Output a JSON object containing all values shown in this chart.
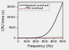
{
  "title": "",
  "xlabel": "Frequency (Hz)",
  "ylabel": "CPU time (s)",
  "xlim": [
    0,
    5000
  ],
  "ylim": [
    0,
    17000
  ],
  "spatial_label": "Spatial method",
  "pw_label": "PW method",
  "spatial_color": "#222222",
  "pw_color": "#cc2222",
  "freq_points": [
    0,
    200,
    400,
    600,
    800,
    1000,
    1500,
    2000,
    2500,
    3000,
    3500,
    4000,
    4500,
    5000
  ],
  "spatial_values": [
    0,
    0.5,
    1.5,
    4,
    8,
    15,
    60,
    200,
    600,
    1500,
    3500,
    7000,
    12000,
    17000
  ],
  "pw_values": [
    0,
    1,
    3,
    6,
    10,
    15,
    35,
    65,
    100,
    145,
    200,
    265,
    340,
    420
  ],
  "yticks": [
    0,
    5000,
    10000,
    15000
  ],
  "ytick_labels": [
    "0",
    "5000",
    "10000",
    "15000"
  ],
  "xticks": [
    0,
    1000,
    2000,
    3000,
    4000,
    5000
  ],
  "xtick_labels": [
    "0",
    "1000",
    "2000",
    "3000",
    "4000",
    "5000"
  ],
  "background_color": "#f0f0f0",
  "legend_fontsize": 3.2,
  "axis_fontsize": 3.5,
  "tick_fontsize": 3.0
}
